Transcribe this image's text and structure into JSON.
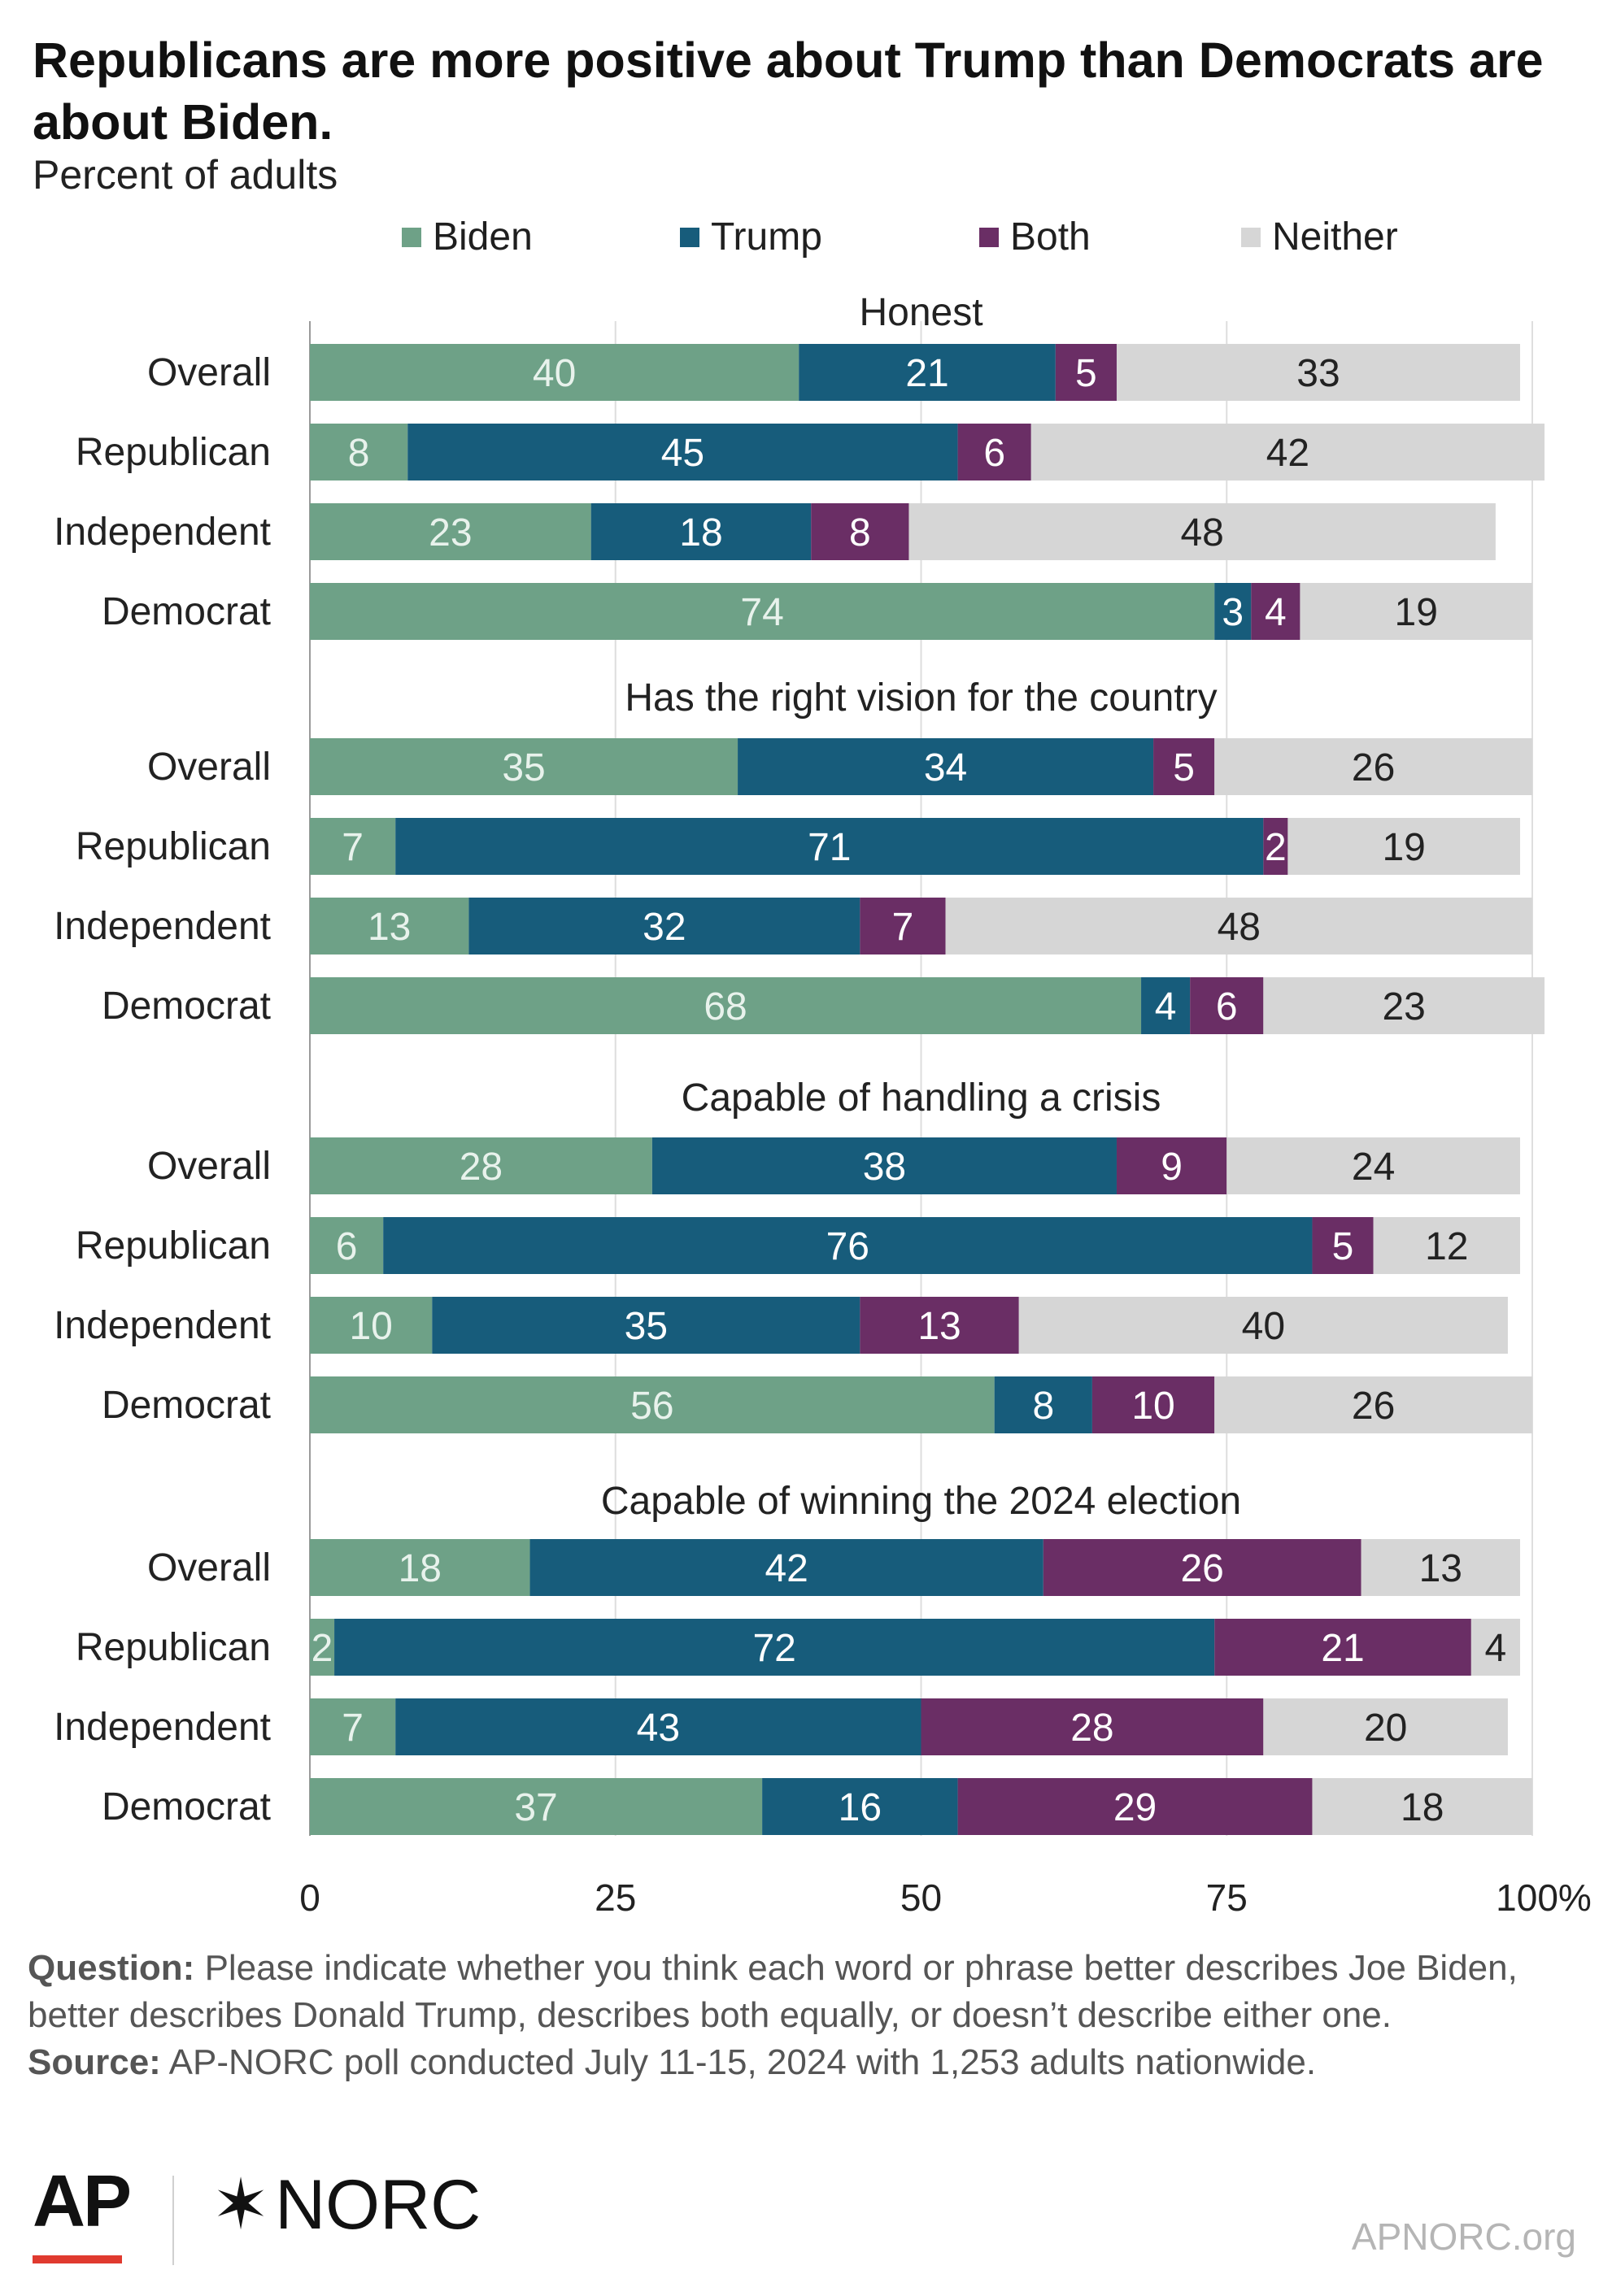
{
  "title": "Republicans are more positive about Trump than Democrats are about Biden.",
  "subtitle": "Percent of adults",
  "legend": [
    {
      "label": "Biden",
      "color": "#6ea187"
    },
    {
      "label": "Trump",
      "color": "#175c7b"
    },
    {
      "label": "Both",
      "color": "#6a2e65"
    },
    {
      "label": "Neither",
      "color": "#d6d6d6"
    }
  ],
  "chart_data": {
    "type": "bar",
    "orientation": "horizontal",
    "stacked": true,
    "series": [
      {
        "name": "Biden",
        "color": "#6ea187"
      },
      {
        "name": "Trump",
        "color": "#175c7b"
      },
      {
        "name": "Both",
        "color": "#6a2e65"
      },
      {
        "name": "Neither",
        "color": "#d6d6d6"
      }
    ],
    "groups": [
      {
        "title": "Honest",
        "rows": [
          {
            "label": "Overall",
            "values": [
              40,
              21,
              5,
              33
            ]
          },
          {
            "label": "Republican",
            "values": [
              8,
              45,
              6,
              42
            ]
          },
          {
            "label": "Independent",
            "values": [
              23,
              18,
              8,
              48
            ]
          },
          {
            "label": "Democrat",
            "values": [
              74,
              3,
              4,
              19
            ]
          }
        ]
      },
      {
        "title": "Has the right vision for the country",
        "rows": [
          {
            "label": "Overall",
            "values": [
              35,
              34,
              5,
              26
            ]
          },
          {
            "label": "Republican",
            "values": [
              7,
              71,
              2,
              19
            ]
          },
          {
            "label": "Independent",
            "values": [
              13,
              32,
              7,
              48
            ]
          },
          {
            "label": "Democrat",
            "values": [
              68,
              4,
              6,
              23
            ]
          }
        ]
      },
      {
        "title": "Capable of handling a crisis",
        "rows": [
          {
            "label": "Overall",
            "values": [
              28,
              38,
              9,
              24
            ]
          },
          {
            "label": "Republican",
            "values": [
              6,
              76,
              5,
              12
            ]
          },
          {
            "label": "Independent",
            "values": [
              10,
              35,
              13,
              40
            ]
          },
          {
            "label": "Democrat",
            "values": [
              56,
              8,
              10,
              26
            ]
          }
        ]
      },
      {
        "title": "Capable of winning the 2024 election",
        "rows": [
          {
            "label": "Overall",
            "values": [
              18,
              42,
              26,
              13
            ]
          },
          {
            "label": "Republican",
            "values": [
              2,
              72,
              21,
              4
            ]
          },
          {
            "label": "Independent",
            "values": [
              7,
              43,
              28,
              20
            ]
          },
          {
            "label": "Democrat",
            "values": [
              37,
              16,
              29,
              18
            ]
          }
        ]
      }
    ],
    "xlim": [
      0,
      100
    ],
    "xticks": [
      "0",
      "25",
      "50",
      "75",
      "100%"
    ],
    "grid": true,
    "legend_position": "top"
  },
  "footer": {
    "question_label": "Question:",
    "question_text": "Please indicate whether you think each word or phrase better describes Joe Biden, better describes Donald Trump, describes both equally, or doesn’t describe either one.",
    "source_label": "Source:",
    "source_text": "AP-NORC poll conducted July 11-15, 2024 with 1,253 adults nationwide."
  },
  "logos": {
    "ap": "AP",
    "norc": "NORC",
    "site": "APNORC.org"
  }
}
